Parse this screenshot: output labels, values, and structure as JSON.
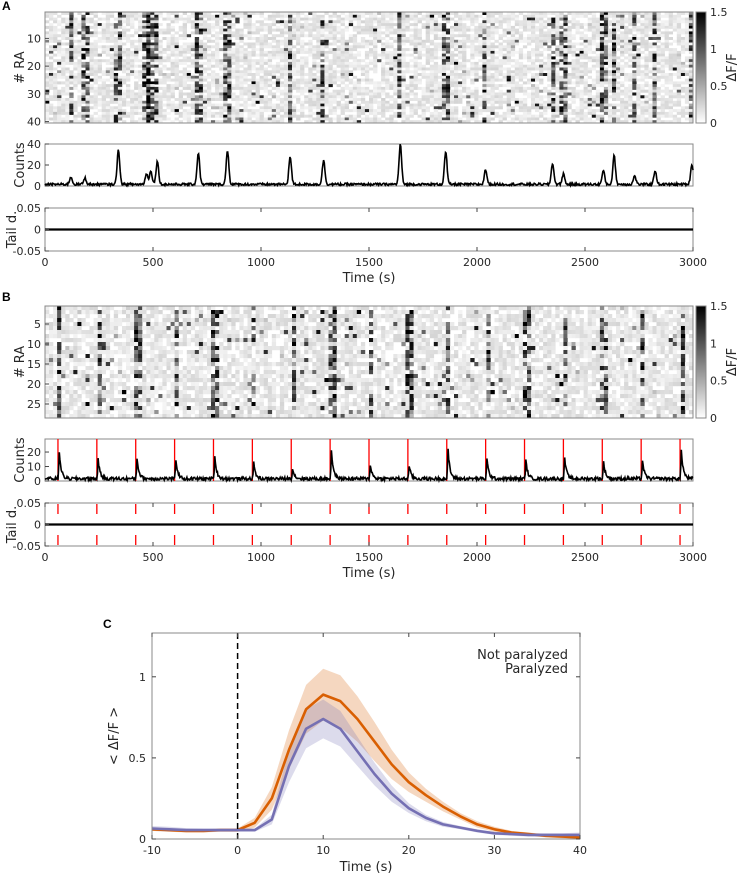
{
  "panels": {
    "a": "A",
    "b": "B",
    "c": "C"
  },
  "chart_data": [
    {
      "panel": "A",
      "type": "heatmap",
      "ylabel": "# RA",
      "rows": 40,
      "yticks": [
        10,
        20,
        30,
        40
      ],
      "xlim": [
        0,
        3000
      ],
      "colorbar": {
        "label": "ΔF/F",
        "range": [
          0,
          1.5
        ],
        "ticks": [
          "0",
          "0.5",
          "1",
          "1.5"
        ]
      },
      "event_times": [
        120,
        185,
        340,
        470,
        490,
        520,
        710,
        845,
        1135,
        1290,
        1645,
        1855,
        2040,
        2350,
        2400,
        2585,
        2635,
        2730,
        2825,
        2995
      ]
    },
    {
      "panel": "A",
      "type": "line",
      "ylabel": "Counts",
      "ylim": [
        0,
        40
      ],
      "yticks": [
        "0",
        "20",
        "40"
      ],
      "peaks": {
        "x": [
          120,
          185,
          340,
          470,
          490,
          520,
          710,
          845,
          1135,
          1290,
          1645,
          1855,
          2040,
          2350,
          2400,
          2585,
          2635,
          2730,
          2825,
          2995
        ],
        "y": [
          7,
          6,
          33,
          10,
          13,
          22,
          30,
          32,
          26,
          23,
          38,
          31,
          14,
          20,
          10,
          13,
          27,
          8,
          13,
          19
        ]
      }
    },
    {
      "panel": "A",
      "type": "line",
      "ylabel": "Tail d.",
      "ylim": [
        -0.05,
        0.05
      ],
      "yticks": [
        "-0.05",
        "0",
        "0.05"
      ],
      "values": "constant 0",
      "xlabel": "Time (s)",
      "xticks": [
        "0",
        "500",
        "1000",
        "1500",
        "2000",
        "2500",
        "3000"
      ]
    },
    {
      "panel": "B",
      "type": "heatmap",
      "ylabel": "# RA",
      "rows": 28,
      "yticks": [
        5,
        10,
        15,
        20,
        25
      ],
      "xlim": [
        0,
        3000
      ],
      "colorbar": {
        "label": "ΔF/F",
        "range": [
          0,
          1.5
        ],
        "ticks": [
          "0",
          "0.5",
          "1",
          "1.5"
        ]
      },
      "stimulus_times": [
        60,
        240,
        420,
        600,
        780,
        960,
        1140,
        1320,
        1500,
        1680,
        1860,
        2040,
        2220,
        2400,
        2580,
        2760,
        2940
      ]
    },
    {
      "panel": "B",
      "type": "line",
      "ylabel": "Counts",
      "ylim": [
        0,
        29
      ],
      "yticks": [
        "0",
        "10",
        "20"
      ],
      "peaks": {
        "x": [
          65,
          245,
          425,
          605,
          785,
          965,
          1145,
          1325,
          1505,
          1685,
          1865,
          2045,
          2225,
          2405,
          2585,
          2765,
          2945
        ],
        "y": [
          21,
          15,
          16,
          15,
          17,
          12,
          8,
          22,
          11,
          10,
          22,
          15,
          14,
          16,
          13,
          14,
          22
        ]
      },
      "stimulus_color": "#ff0000"
    },
    {
      "panel": "B",
      "type": "line",
      "ylabel": "Tail d.",
      "ylim": [
        -0.05,
        0.05
      ],
      "yticks": [
        "-0.05",
        "0",
        "0.05"
      ],
      "values": "constant 0",
      "xlabel": "Time (s)",
      "xticks": [
        "0",
        "500",
        "1000",
        "1500",
        "2000",
        "2500",
        "3000"
      ]
    },
    {
      "panel": "C",
      "type": "line",
      "xlabel": "Time (s)",
      "ylabel": "< ΔF/F >",
      "xlim": [
        -10,
        40
      ],
      "ylim": [
        0,
        1.27
      ],
      "xticks": [
        "-10",
        "0",
        "10",
        "20",
        "30",
        "40"
      ],
      "yticks": [
        "0",
        "0.5",
        "1"
      ],
      "vline_x": 0,
      "legend": "top-right",
      "x": [
        -10,
        -8,
        -6,
        -4,
        -2,
        0,
        2,
        4,
        6,
        8,
        10,
        12,
        14,
        16,
        18,
        20,
        22,
        24,
        26,
        28,
        30,
        32,
        34,
        36,
        38,
        40
      ],
      "series": [
        {
          "name": "Not paralyzed",
          "color": "#d95f02",
          "values": [
            0.06,
            0.055,
            0.05,
            0.05,
            0.055,
            0.055,
            0.1,
            0.25,
            0.55,
            0.8,
            0.89,
            0.85,
            0.74,
            0.6,
            0.46,
            0.35,
            0.27,
            0.2,
            0.14,
            0.09,
            0.06,
            0.04,
            0.03,
            0.02,
            0.015,
            0.01
          ],
          "error": [
            0.01,
            0.01,
            0.01,
            0.01,
            0.01,
            0.01,
            0.03,
            0.07,
            0.12,
            0.15,
            0.16,
            0.16,
            0.14,
            0.12,
            0.09,
            0.06,
            0.04,
            0.03,
            0.02,
            0.02,
            0.015,
            0.01,
            0.01,
            0.01,
            0.01,
            0.01
          ]
        },
        {
          "name": "Paralyzed",
          "color": "#7570b3",
          "values": [
            0.065,
            0.06,
            0.055,
            0.055,
            0.055,
            0.055,
            0.055,
            0.12,
            0.45,
            0.68,
            0.74,
            0.68,
            0.54,
            0.4,
            0.28,
            0.19,
            0.13,
            0.09,
            0.07,
            0.05,
            0.035,
            0.03,
            0.025,
            0.025,
            0.025,
            0.025
          ],
          "error": [
            0.015,
            0.015,
            0.012,
            0.01,
            0.01,
            0.01,
            0.01,
            0.03,
            0.1,
            0.12,
            0.12,
            0.11,
            0.09,
            0.07,
            0.05,
            0.03,
            0.02,
            0.015,
            0.01,
            0.01,
            0.01,
            0.01,
            0.01,
            0.01,
            0.01,
            0.015
          ]
        }
      ]
    }
  ]
}
